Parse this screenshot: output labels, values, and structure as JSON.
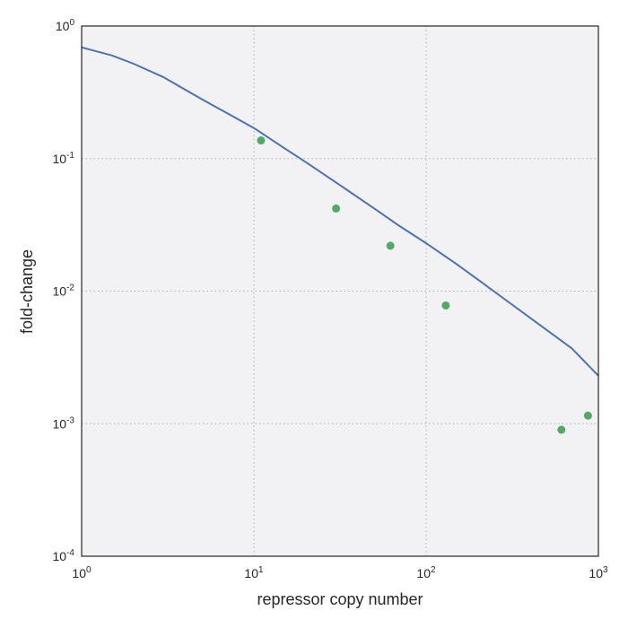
{
  "chart_data": {
    "type": "scatter",
    "title": "",
    "xlabel": "repressor copy number",
    "ylabel": "fold-change",
    "xscale": "log",
    "yscale": "log",
    "xlim": [
      1,
      1000
    ],
    "ylim": [
      0.0001,
      1
    ],
    "grid": true,
    "x_ticks": [
      {
        "value": 1,
        "base": "10",
        "exp": "0"
      },
      {
        "value": 10,
        "base": "10",
        "exp": "1"
      },
      {
        "value": 100,
        "base": "10",
        "exp": "2"
      },
      {
        "value": 1000,
        "base": "10",
        "exp": "3"
      }
    ],
    "y_ticks": [
      {
        "value": 0.0001,
        "base": "10",
        "exp": "-4"
      },
      {
        "value": 0.001,
        "base": "10",
        "exp": "-3"
      },
      {
        "value": 0.01,
        "base": "10",
        "exp": "-2"
      },
      {
        "value": 0.1,
        "base": "10",
        "exp": "-1"
      },
      {
        "value": 1,
        "base": "10",
        "exp": "0"
      }
    ],
    "series": [
      {
        "kind": "line",
        "color": "#4c72b0",
        "x": [
          1,
          1.5,
          2,
          3,
          5,
          7,
          10,
          15,
          20,
          30,
          50,
          70,
          100,
          150,
          200,
          300,
          500,
          700,
          1000
        ],
        "y": [
          0.69,
          0.6,
          0.52,
          0.41,
          0.28,
          0.22,
          0.17,
          0.12,
          0.094,
          0.066,
          0.042,
          0.031,
          0.023,
          0.016,
          0.0122,
          0.0083,
          0.0051,
          0.0037,
          0.0023
        ]
      },
      {
        "kind": "scatter",
        "color": "#55a868",
        "x": [
          11,
          30,
          62,
          130,
          610,
          870
        ],
        "y": [
          0.137,
          0.042,
          0.022,
          0.0078,
          0.0009,
          0.00115
        ]
      }
    ],
    "colors": {
      "plot_background": "#f2f2f5",
      "grid": "#b0b0b0",
      "axes": "#262626"
    }
  }
}
